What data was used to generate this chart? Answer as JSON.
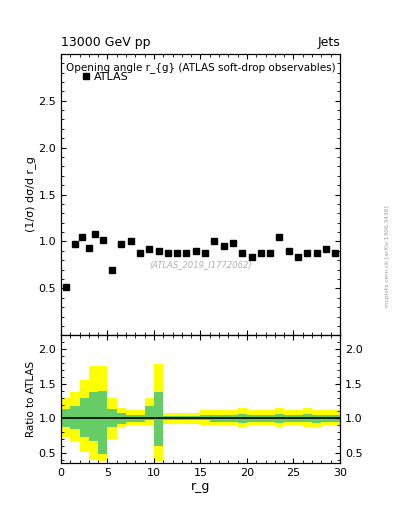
{
  "title_left": "13000 GeV pp",
  "title_right": "Jets",
  "plot_title": "Opening angle r_{g} (ATLAS soft-drop observables)",
  "legend_label": "ATLAS",
  "ylabel_main": "(1/σ) dσ/d r_g",
  "ylabel_ratio": "Ratio to ATLAS",
  "xlabel": "r_g",
  "watermark": "(ATLAS_2019_I1772062)",
  "side_label": "mcplots.cern.ch [arXiv:1306.3436]",
  "main_ylim": [
    0,
    3.0
  ],
  "ratio_ylim": [
    0.35,
    2.2
  ],
  "ratio_yticks": [
    0.5,
    1.0,
    1.5,
    2.0
  ],
  "main_yticks": [
    0.5,
    1.0,
    1.5,
    2.0,
    2.5
  ],
  "xlim": [
    0,
    30
  ],
  "data_x": [
    0.5,
    1.5,
    2.3,
    3.0,
    3.7,
    4.5,
    5.5,
    6.5,
    7.5,
    8.5,
    9.5,
    10.5,
    11.5,
    12.5,
    13.5,
    14.5,
    15.5,
    16.5,
    17.5,
    18.5,
    19.5,
    20.5,
    21.5,
    22.5,
    23.5,
    24.5,
    25.5,
    26.5,
    27.5,
    28.5,
    29.5
  ],
  "data_y": [
    0.52,
    0.97,
    1.05,
    0.93,
    1.08,
    1.02,
    0.7,
    0.97,
    1.0,
    0.88,
    0.92,
    0.9,
    0.88,
    0.88,
    0.88,
    0.9,
    0.88,
    1.0,
    0.95,
    0.98,
    0.88,
    0.83,
    0.88,
    0.88,
    1.05,
    0.9,
    0.83,
    0.88,
    0.88,
    0.92,
    0.88
  ],
  "x_edges": [
    0,
    1,
    2,
    3,
    4,
    5,
    6,
    7,
    8,
    9,
    10,
    11,
    12,
    13,
    14,
    15,
    16,
    17,
    18,
    19,
    20,
    21,
    22,
    23,
    24,
    25,
    26,
    27,
    28,
    29,
    30
  ],
  "yellow_lo": [
    0.73,
    0.68,
    0.52,
    0.4,
    0.38,
    0.7,
    0.88,
    0.9,
    0.9,
    0.9,
    0.38,
    0.92,
    0.92,
    0.92,
    0.92,
    0.9,
    0.9,
    0.9,
    0.9,
    0.88,
    0.9,
    0.9,
    0.9,
    0.88,
    0.9,
    0.9,
    0.88,
    0.88,
    0.9,
    0.9,
    0.88
  ],
  "yellow_hi": [
    1.3,
    1.38,
    1.55,
    1.75,
    1.75,
    1.3,
    1.15,
    1.12,
    1.12,
    1.3,
    1.78,
    1.08,
    1.08,
    1.08,
    1.08,
    1.12,
    1.12,
    1.12,
    1.12,
    1.15,
    1.12,
    1.12,
    1.12,
    1.15,
    1.12,
    1.12,
    1.15,
    1.12,
    1.12,
    1.12,
    1.15
  ],
  "green_lo": [
    0.87,
    0.85,
    0.73,
    0.68,
    0.48,
    0.87,
    0.92,
    0.95,
    0.95,
    0.97,
    0.6,
    0.97,
    0.97,
    0.97,
    0.97,
    0.97,
    0.95,
    0.95,
    0.95,
    0.93,
    0.95,
    0.95,
    0.95,
    0.93,
    0.95,
    0.95,
    0.95,
    0.93,
    0.95,
    0.95,
    0.95
  ],
  "green_hi": [
    1.13,
    1.18,
    1.3,
    1.38,
    1.4,
    1.13,
    1.08,
    1.05,
    1.05,
    1.18,
    1.38,
    1.03,
    1.03,
    1.03,
    1.03,
    1.05,
    1.05,
    1.05,
    1.05,
    1.07,
    1.05,
    1.05,
    1.05,
    1.07,
    1.05,
    1.05,
    1.07,
    1.05,
    1.05,
    1.05,
    1.08
  ],
  "yellow_color": "#ffff00",
  "green_color": "#66cc66",
  "marker_color": "black",
  "marker_size": 4.5
}
